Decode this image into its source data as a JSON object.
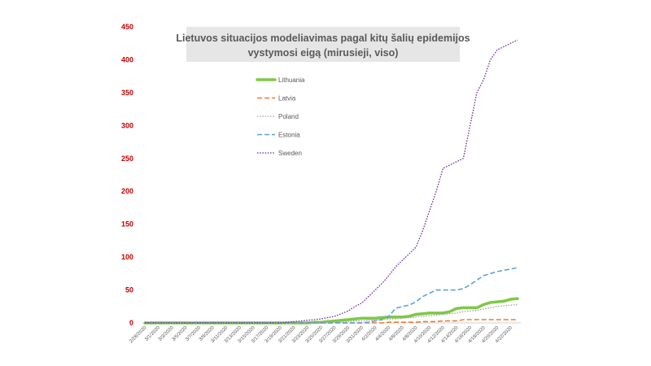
{
  "chart_data": {
    "type": "line",
    "title": "Lietuvos situacijos  modeliavimas  pagal  kitų  šalių  epidemijos",
    "subtitle": "vystymosi eigą (mirusieji,  viso)",
    "xlabel": "",
    "ylabel": "",
    "ylim": [
      0,
      450
    ],
    "yticks": [
      "0",
      "50",
      "100",
      "150",
      "200",
      "250",
      "300",
      "350",
      "400",
      "450"
    ],
    "grid": false,
    "legend_position": "top-left-inside",
    "x_tick_labels": [
      "2/28/2020",
      "3/1/2020",
      "3/3/2020",
      "3/5/2020",
      "3/7/2020",
      "3/9/2020",
      "3/11/2020",
      "3/13/2020",
      "3/15/2020",
      "3/17/2020",
      "3/19/2020",
      "3/21/2020",
      "3/23/2020",
      "3/25/2020",
      "3/27/2020",
      "3/29/2020",
      "3/31/2020",
      "4/2/2020",
      "4/4/2020",
      "4/6/2020",
      "4/8/2020",
      "4/10/2020",
      "4/12/2020",
      "4/14/2020",
      "4/16/2020",
      "4/18/2020",
      "4/20/2020",
      "4/22/2020"
    ],
    "x": [
      "2/28/2020",
      "2/29/2020",
      "3/1/2020",
      "3/2/2020",
      "3/3/2020",
      "3/4/2020",
      "3/5/2020",
      "3/6/2020",
      "3/7/2020",
      "3/8/2020",
      "3/9/2020",
      "3/10/2020",
      "3/11/2020",
      "3/12/2020",
      "3/13/2020",
      "3/14/2020",
      "3/15/2020",
      "3/16/2020",
      "3/17/2020",
      "3/18/2020",
      "3/19/2020",
      "3/20/2020",
      "3/21/2020",
      "3/22/2020",
      "3/23/2020",
      "3/24/2020",
      "3/25/2020",
      "3/26/2020",
      "3/27/2020",
      "3/28/2020",
      "3/29/2020",
      "3/30/2020",
      "3/31/2020",
      "4/1/2020",
      "4/2/2020",
      "4/3/2020",
      "4/4/2020",
      "4/5/2020",
      "4/6/2020",
      "4/7/2020",
      "4/8/2020",
      "4/9/2020",
      "4/10/2020",
      "4/11/2020",
      "4/12/2020",
      "4/13/2020",
      "4/14/2020",
      "4/15/2020",
      "4/16/2020",
      "4/17/2020",
      "4/18/2020",
      "4/19/2020",
      "4/20/2020",
      "4/21/2020",
      "4/22/2020",
      "4/23/2020"
    ],
    "series": [
      {
        "name": "Lithuania",
        "color": "#7fc843",
        "style": "solid-thick",
        "values": [
          0,
          0,
          0,
          0,
          0,
          0,
          0,
          0,
          0,
          0,
          0,
          0,
          0,
          0,
          0,
          0,
          0,
          0,
          0,
          0,
          0,
          0,
          0,
          0,
          0,
          1,
          1,
          2,
          3,
          4,
          5,
          6,
          7,
          7,
          7,
          8,
          9,
          9,
          9,
          10,
          13,
          14,
          15,
          15,
          15,
          17,
          22,
          23,
          23,
          23,
          28,
          31,
          32,
          33,
          36,
          37
        ]
      },
      {
        "name": "Latvia",
        "color": "#ed7d31",
        "style": "dashed",
        "values": [
          0,
          0,
          0,
          0,
          0,
          0,
          0,
          0,
          0,
          0,
          0,
          0,
          0,
          0,
          0,
          0,
          0,
          0,
          0,
          0,
          0,
          0,
          0,
          0,
          0,
          0,
          0,
          0,
          0,
          0,
          0,
          0,
          0,
          0,
          0,
          0,
          1,
          1,
          1,
          1,
          1,
          2,
          2,
          2,
          3,
          3,
          3,
          5,
          5,
          5,
          5,
          5,
          5,
          5,
          5,
          5
        ]
      },
      {
        "name": "Poland",
        "color": "#a5a5a5",
        "style": "dotted",
        "values": [
          0,
          0,
          0,
          0,
          0,
          0,
          0,
          0,
          0,
          0,
          0,
          0,
          0,
          0,
          0,
          0,
          0,
          0,
          0,
          0,
          0,
          0,
          0,
          0,
          0,
          0,
          0,
          1,
          1,
          1,
          2,
          3,
          3,
          4,
          4,
          5,
          6,
          6,
          7,
          8,
          9,
          10,
          11,
          12,
          13,
          14,
          15,
          17,
          18,
          19,
          21,
          23,
          25,
          26,
          27,
          28
        ]
      },
      {
        "name": "Estonia",
        "color": "#5ba3d0",
        "style": "dashed",
        "values": [
          0,
          0,
          0,
          0,
          0,
          0,
          0,
          0,
          0,
          0,
          0,
          0,
          0,
          0,
          0,
          0,
          0,
          0,
          0,
          0,
          0,
          0,
          0,
          0,
          0,
          0,
          0,
          0,
          0,
          0,
          0,
          0,
          0,
          1,
          3,
          5,
          10,
          22,
          25,
          27,
          32,
          40,
          45,
          50,
          50,
          50,
          50,
          52,
          58,
          65,
          72,
          75,
          78,
          80,
          82,
          84
        ]
      },
      {
        "name": "Sweden",
        "color": "#7030a0",
        "style": "dotted",
        "values": [
          0,
          0,
          0,
          0,
          0,
          0,
          0,
          0,
          0,
          0,
          0,
          0,
          0,
          0,
          0,
          0,
          0,
          0,
          0,
          0,
          0,
          1,
          2,
          3,
          4,
          5,
          6,
          8,
          10,
          14,
          18,
          25,
          30,
          40,
          50,
          60,
          72,
          85,
          95,
          105,
          115,
          140,
          170,
          200,
          235,
          240,
          245,
          250,
          300,
          350,
          370,
          400,
          415,
          420,
          425,
          430
        ]
      }
    ]
  }
}
